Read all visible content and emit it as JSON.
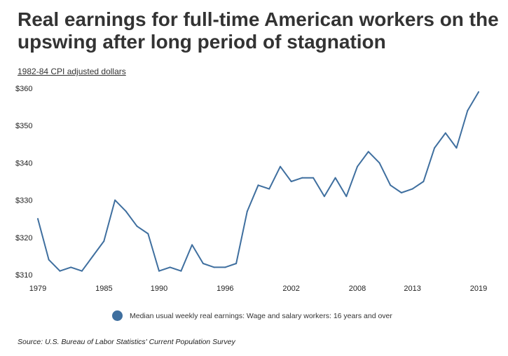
{
  "title": "Real earnings for full-time American workers on the upswing after long period of stagnation",
  "subtitle": "1982-84 CPI adjusted dollars",
  "source": "Source: U.S. Bureau of Labor Statistics' Current Population Survey",
  "colors": {
    "series": "#3f6f9f",
    "text": "#333333"
  },
  "chart_data": {
    "type": "line",
    "title": "Real earnings for full-time American workers on the upswing after long period of stagnation",
    "ylabel": "1982-84 CPI adjusted dollars",
    "xlabel": "",
    "xlim": [
      1979,
      2019
    ],
    "ylim": [
      310,
      360
    ],
    "x_ticks": [
      1979,
      1985,
      1990,
      1996,
      2002,
      2008,
      2013,
      2019
    ],
    "y_ticks": [
      {
        "value": 310,
        "label": "$310"
      },
      {
        "value": 320,
        "label": "$320"
      },
      {
        "value": 330,
        "label": "$330"
      },
      {
        "value": 340,
        "label": "$340"
      },
      {
        "value": 350,
        "label": "$350"
      },
      {
        "value": 360,
        "label": "$360"
      }
    ],
    "grid": false,
    "legend_position": "bottom",
    "series": [
      {
        "name": "Median usual weekly real earnings: Wage and salary workers: 16 years and over",
        "x": [
          1979,
          1980,
          1981,
          1982,
          1983,
          1984,
          1985,
          1986,
          1987,
          1988,
          1989,
          1990,
          1991,
          1992,
          1993,
          1994,
          1995,
          1996,
          1997,
          1998,
          1999,
          2000,
          2001,
          2002,
          2003,
          2004,
          2005,
          2006,
          2007,
          2008,
          2009,
          2010,
          2011,
          2012,
          2013,
          2014,
          2015,
          2016,
          2017,
          2018,
          2019
        ],
        "values": [
          325,
          314,
          311,
          312,
          311,
          315,
          319,
          330,
          327,
          323,
          321,
          311,
          312,
          311,
          318,
          313,
          312,
          312,
          313,
          327,
          334,
          333,
          339,
          335,
          336,
          336,
          331,
          336,
          331,
          339,
          343,
          340,
          334,
          332,
          333,
          335,
          344,
          348,
          344,
          354,
          359
        ]
      }
    ]
  }
}
